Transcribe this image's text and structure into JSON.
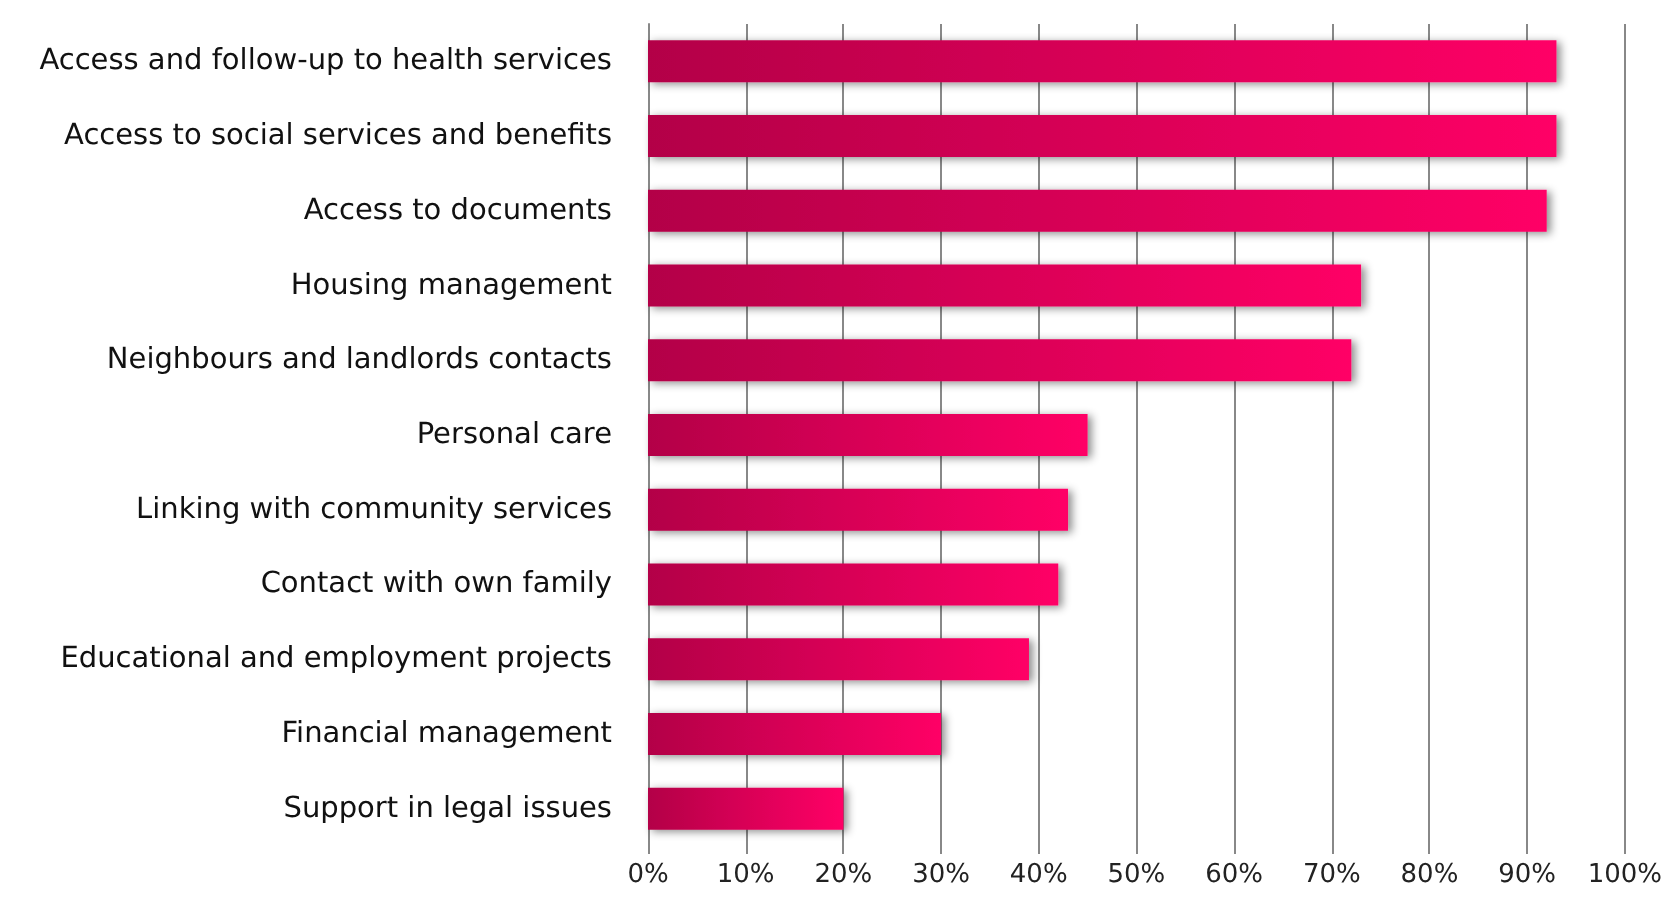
{
  "chart_data": {
    "type": "bar",
    "orientation": "horizontal",
    "categories": [
      "Access and follow-up to health services",
      "Access to social services and benefits",
      "Access to documents",
      "Housing management",
      "Neighbours and landlords contacts",
      "Personal care",
      "Linking with community services",
      "Contact with own family",
      "Educational and employment projects",
      "Financial management",
      "Support in legal issues"
    ],
    "values": [
      93,
      93,
      92,
      73,
      72,
      45,
      43,
      42,
      39,
      30,
      20
    ],
    "color": "#ff0066",
    "xlim": [
      0,
      100
    ],
    "xticks": [
      {
        "value": 0,
        "label": "0%"
      },
      {
        "value": 10,
        "label": "10%"
      },
      {
        "value": 20,
        "label": "20%"
      },
      {
        "value": 30,
        "label": "30%"
      },
      {
        "value": 40,
        "label": "40%"
      },
      {
        "value": 50,
        "label": "50%"
      },
      {
        "value": 60,
        "label": "60%"
      },
      {
        "value": 70,
        "label": "70%"
      },
      {
        "value": 80,
        "label": "80%"
      },
      {
        "value": 90,
        "label": "90%"
      },
      {
        "value": 100,
        "label": "100%"
      }
    ],
    "grid": "x"
  }
}
